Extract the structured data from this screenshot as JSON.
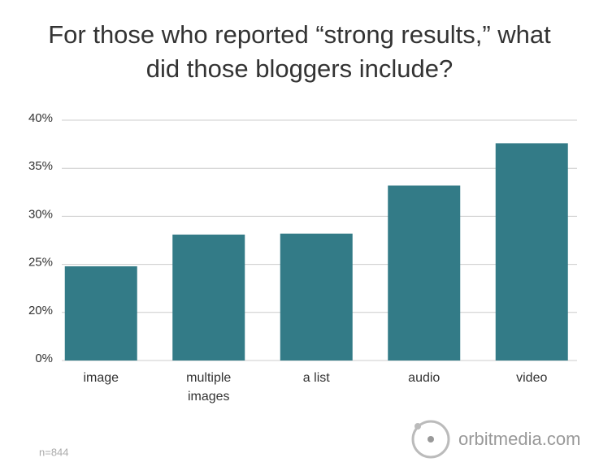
{
  "chart_data": {
    "type": "bar",
    "title": "For those who reported “strong results,” what did those bloggers include?",
    "categories": [
      "image",
      "multiple images",
      "a list",
      "audio",
      "video"
    ],
    "values": [
      24.8,
      28.1,
      28.2,
      33.2,
      37.6
    ],
    "color": "#337b87",
    "ylim": [
      0,
      40
    ],
    "yticks": [
      {
        "value": 0,
        "label": "0%"
      },
      {
        "value": 20,
        "label": "20%"
      },
      {
        "value": 25,
        "label": "25%"
      },
      {
        "value": 30,
        "label": "30%"
      },
      {
        "value": 35,
        "label": "35%"
      },
      {
        "value": 40,
        "label": "40%"
      }
    ],
    "grid": true,
    "note": "n=844",
    "source": "orbitmedia.com"
  }
}
